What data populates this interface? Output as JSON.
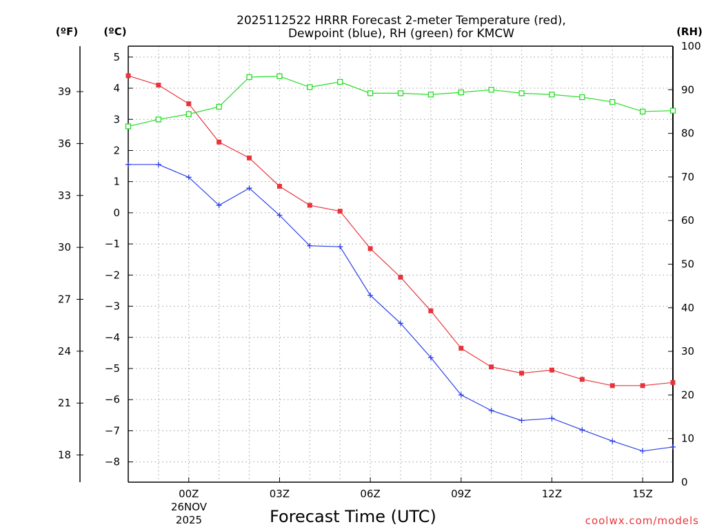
{
  "chart_data": {
    "type": "line",
    "title_lines": [
      "2025112522 HRRR Forecast 2-meter Temperature (red),",
      "Dewpoint (blue), RH (green) for KMCW"
    ],
    "xlabel": "Forecast Time (UTC)",
    "credit": "coolwx.com/models",
    "units": {
      "fahrenheit": "(ºF)",
      "celsius": "(ºC)",
      "rh": "(RH)"
    },
    "x_hours": [
      -2,
      -1,
      0,
      1,
      2,
      3,
      4,
      5,
      6,
      7,
      8,
      9,
      10,
      11,
      12,
      13,
      14,
      15,
      16
    ],
    "xlim": [
      -2,
      16
    ],
    "x_ticks": [
      {
        "hour": 0,
        "label": "00Z"
      },
      {
        "hour": 3,
        "label": "03Z"
      },
      {
        "hour": 6,
        "label": "06Z"
      },
      {
        "hour": 9,
        "label": "09Z"
      },
      {
        "hour": 12,
        "label": "12Z"
      },
      {
        "hour": 15,
        "label": "15Z"
      }
    ],
    "date_label": [
      "26NOV",
      "2025"
    ],
    "y_celsius": {
      "lim": [
        -8.65,
        5.35
      ],
      "ticks": [
        5,
        4,
        3,
        2,
        1,
        0,
        -1,
        -2,
        -3,
        -4,
        -5,
        -6,
        -7,
        -8
      ]
    },
    "y_fahrenheit": {
      "ticks": [
        39,
        36,
        33,
        30,
        27,
        24,
        21,
        18
      ]
    },
    "y_rh": {
      "lim": [
        0,
        100
      ],
      "ticks": [
        100,
        90,
        80,
        70,
        60,
        50,
        40,
        30,
        20,
        10,
        0
      ]
    },
    "series": [
      {
        "name": "Temperature",
        "axis": "celsius",
        "color": "#e8333b",
        "marker": "filled-square",
        "values": [
          4.4,
          4.1,
          3.5,
          2.27,
          1.76,
          0.85,
          0.24,
          0.05,
          -1.15,
          -2.07,
          -3.15,
          -4.35,
          -4.95,
          -5.15,
          -5.05,
          -5.35,
          -5.55,
          -5.55,
          -5.45
        ]
      },
      {
        "name": "Dewpoint",
        "axis": "celsius",
        "color": "#2a3ee8",
        "marker": "plus",
        "values": [
          1.55,
          1.55,
          1.14,
          0.24,
          0.79,
          -0.08,
          -1.06,
          -1.09,
          -2.65,
          -3.55,
          -4.65,
          -5.85,
          -6.35,
          -6.67,
          -6.6,
          -6.97,
          -7.33,
          -7.65,
          -7.52
        ]
      },
      {
        "name": "RH",
        "axis": "rh",
        "color": "#22dd22",
        "marker": "open-square",
        "values": [
          81.6,
          83.2,
          84.4,
          86.1,
          92.9,
          93.1,
          90.6,
          91.8,
          89.2,
          89.2,
          88.9,
          89.4,
          90.0,
          89.2,
          88.9,
          88.3,
          87.2,
          85.0,
          85.2
        ]
      }
    ]
  }
}
